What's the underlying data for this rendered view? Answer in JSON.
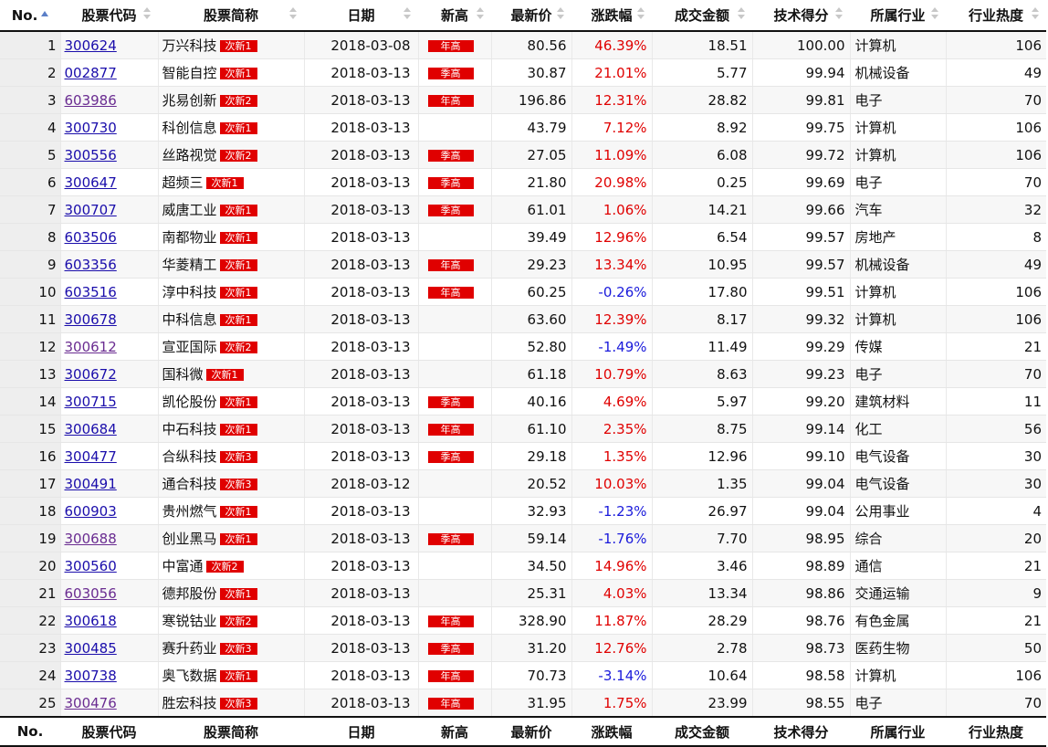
{
  "columns": [
    "No.",
    "股票代码",
    "股票简称",
    "日期",
    "新高",
    "最新价",
    "涨跌幅",
    "成交金额",
    "技术得分",
    "所属行业",
    "行业热度"
  ],
  "colors": {
    "up": "#e00000",
    "down": "#1a1adb",
    "tag_bg": "#e00000",
    "sort_active": "#5b7fc7"
  },
  "icons": {
    "sort_asc": "sort-asc-icon",
    "sortable": "sort-toggle-icon"
  },
  "rows": [
    {
      "no": "1",
      "code": "300624",
      "visited": false,
      "name": "万兴科技",
      "tag": "次新1",
      "date": "2018-03-08",
      "high": "年高",
      "price": "80.56",
      "change": "46.39%",
      "dir": "up",
      "amount": "18.51",
      "score": "100.00",
      "industry": "计算机",
      "heat": "106"
    },
    {
      "no": "2",
      "code": "002877",
      "visited": false,
      "name": "智能自控",
      "tag": "次新1",
      "date": "2018-03-13",
      "high": "季高",
      "price": "30.87",
      "change": "21.01%",
      "dir": "up",
      "amount": "5.77",
      "score": "99.94",
      "industry": "机械设备",
      "heat": "49"
    },
    {
      "no": "3",
      "code": "603986",
      "visited": true,
      "name": "兆易创新",
      "tag": "次新2",
      "date": "2018-03-13",
      "high": "年高",
      "price": "196.86",
      "change": "12.31%",
      "dir": "up",
      "amount": "28.82",
      "score": "99.81",
      "industry": "电子",
      "heat": "70"
    },
    {
      "no": "4",
      "code": "300730",
      "visited": false,
      "name": "科创信息",
      "tag": "次新1",
      "date": "2018-03-13",
      "high": "",
      "price": "43.79",
      "change": "7.12%",
      "dir": "up",
      "amount": "8.92",
      "score": "99.75",
      "industry": "计算机",
      "heat": "106"
    },
    {
      "no": "5",
      "code": "300556",
      "visited": false,
      "name": "丝路视觉",
      "tag": "次新2",
      "date": "2018-03-13",
      "high": "季高",
      "price": "27.05",
      "change": "11.09%",
      "dir": "up",
      "amount": "6.08",
      "score": "99.72",
      "industry": "计算机",
      "heat": "106"
    },
    {
      "no": "6",
      "code": "300647",
      "visited": false,
      "name": "超频三",
      "tag": "次新1",
      "date": "2018-03-13",
      "high": "季高",
      "price": "21.80",
      "change": "20.98%",
      "dir": "up",
      "amount": "0.25",
      "score": "99.69",
      "industry": "电子",
      "heat": "70"
    },
    {
      "no": "7",
      "code": "300707",
      "visited": false,
      "name": "威唐工业",
      "tag": "次新1",
      "date": "2018-03-13",
      "high": "季高",
      "price": "61.01",
      "change": "1.06%",
      "dir": "up",
      "amount": "14.21",
      "score": "99.66",
      "industry": "汽车",
      "heat": "32"
    },
    {
      "no": "8",
      "code": "603506",
      "visited": false,
      "name": "南都物业",
      "tag": "次新1",
      "date": "2018-03-13",
      "high": "",
      "price": "39.49",
      "change": "12.96%",
      "dir": "up",
      "amount": "6.54",
      "score": "99.57",
      "industry": "房地产",
      "heat": "8"
    },
    {
      "no": "9",
      "code": "603356",
      "visited": false,
      "name": "华菱精工",
      "tag": "次新1",
      "date": "2018-03-13",
      "high": "年高",
      "price": "29.23",
      "change": "13.34%",
      "dir": "up",
      "amount": "10.95",
      "score": "99.57",
      "industry": "机械设备",
      "heat": "49"
    },
    {
      "no": "10",
      "code": "603516",
      "visited": false,
      "name": "淳中科技",
      "tag": "次新1",
      "date": "2018-03-13",
      "high": "年高",
      "price": "60.25",
      "change": "-0.26%",
      "dir": "down",
      "amount": "17.80",
      "score": "99.51",
      "industry": "计算机",
      "heat": "106"
    },
    {
      "no": "11",
      "code": "300678",
      "visited": false,
      "name": "中科信息",
      "tag": "次新1",
      "date": "2018-03-13",
      "high": "",
      "price": "63.60",
      "change": "12.39%",
      "dir": "up",
      "amount": "8.17",
      "score": "99.32",
      "industry": "计算机",
      "heat": "106"
    },
    {
      "no": "12",
      "code": "300612",
      "visited": true,
      "name": "宣亚国际",
      "tag": "次新2",
      "date": "2018-03-13",
      "high": "",
      "price": "52.80",
      "change": "-1.49%",
      "dir": "down",
      "amount": "11.49",
      "score": "99.29",
      "industry": "传媒",
      "heat": "21"
    },
    {
      "no": "13",
      "code": "300672",
      "visited": false,
      "name": "国科微",
      "tag": "次新1",
      "date": "2018-03-13",
      "high": "",
      "price": "61.18",
      "change": "10.79%",
      "dir": "up",
      "amount": "8.63",
      "score": "99.23",
      "industry": "电子",
      "heat": "70"
    },
    {
      "no": "14",
      "code": "300715",
      "visited": false,
      "name": "凯伦股份",
      "tag": "次新1",
      "date": "2018-03-13",
      "high": "季高",
      "price": "40.16",
      "change": "4.69%",
      "dir": "up",
      "amount": "5.97",
      "score": "99.20",
      "industry": "建筑材料",
      "heat": "11"
    },
    {
      "no": "15",
      "code": "300684",
      "visited": false,
      "name": "中石科技",
      "tag": "次新1",
      "date": "2018-03-13",
      "high": "年高",
      "price": "61.10",
      "change": "2.35%",
      "dir": "up",
      "amount": "8.75",
      "score": "99.14",
      "industry": "化工",
      "heat": "56"
    },
    {
      "no": "16",
      "code": "300477",
      "visited": false,
      "name": "合纵科技",
      "tag": "次新3",
      "date": "2018-03-13",
      "high": "季高",
      "price": "29.18",
      "change": "1.35%",
      "dir": "up",
      "amount": "12.96",
      "score": "99.10",
      "industry": "电气设备",
      "heat": "30"
    },
    {
      "no": "17",
      "code": "300491",
      "visited": false,
      "name": "通合科技",
      "tag": "次新3",
      "date": "2018-03-12",
      "high": "",
      "price": "20.52",
      "change": "10.03%",
      "dir": "up",
      "amount": "1.35",
      "score": "99.04",
      "industry": "电气设备",
      "heat": "30"
    },
    {
      "no": "18",
      "code": "600903",
      "visited": false,
      "name": "贵州燃气",
      "tag": "次新1",
      "date": "2018-03-13",
      "high": "",
      "price": "32.93",
      "change": "-1.23%",
      "dir": "down",
      "amount": "26.97",
      "score": "99.04",
      "industry": "公用事业",
      "heat": "4"
    },
    {
      "no": "19",
      "code": "300688",
      "visited": true,
      "name": "创业黑马",
      "tag": "次新1",
      "date": "2018-03-13",
      "high": "季高",
      "price": "59.14",
      "change": "-1.76%",
      "dir": "down",
      "amount": "7.70",
      "score": "98.95",
      "industry": "综合",
      "heat": "20"
    },
    {
      "no": "20",
      "code": "300560",
      "visited": false,
      "name": "中富通",
      "tag": "次新2",
      "date": "2018-03-13",
      "high": "",
      "price": "34.50",
      "change": "14.96%",
      "dir": "up",
      "amount": "3.46",
      "score": "98.89",
      "industry": "通信",
      "heat": "21"
    },
    {
      "no": "21",
      "code": "603056",
      "visited": true,
      "name": "德邦股份",
      "tag": "次新1",
      "date": "2018-03-13",
      "high": "",
      "price": "25.31",
      "change": "4.03%",
      "dir": "up",
      "amount": "13.34",
      "score": "98.86",
      "industry": "交通运输",
      "heat": "9"
    },
    {
      "no": "22",
      "code": "300618",
      "visited": false,
      "name": "寒锐钴业",
      "tag": "次新2",
      "date": "2018-03-13",
      "high": "年高",
      "price": "328.90",
      "change": "11.87%",
      "dir": "up",
      "amount": "28.29",
      "score": "98.76",
      "industry": "有色金属",
      "heat": "21"
    },
    {
      "no": "23",
      "code": "300485",
      "visited": false,
      "name": "赛升药业",
      "tag": "次新3",
      "date": "2018-03-13",
      "high": "季高",
      "price": "31.20",
      "change": "12.76%",
      "dir": "up",
      "amount": "2.78",
      "score": "98.73",
      "industry": "医药生物",
      "heat": "50"
    },
    {
      "no": "24",
      "code": "300738",
      "visited": false,
      "name": "奥飞数据",
      "tag": "次新1",
      "date": "2018-03-13",
      "high": "年高",
      "price": "70.73",
      "change": "-3.14%",
      "dir": "down",
      "amount": "10.64",
      "score": "98.58",
      "industry": "计算机",
      "heat": "106"
    },
    {
      "no": "25",
      "code": "300476",
      "visited": true,
      "name": "胜宏科技",
      "tag": "次新3",
      "date": "2018-03-13",
      "high": "年高",
      "price": "31.95",
      "change": "1.75%",
      "dir": "up",
      "amount": "23.99",
      "score": "98.55",
      "industry": "电子",
      "heat": "70"
    }
  ]
}
